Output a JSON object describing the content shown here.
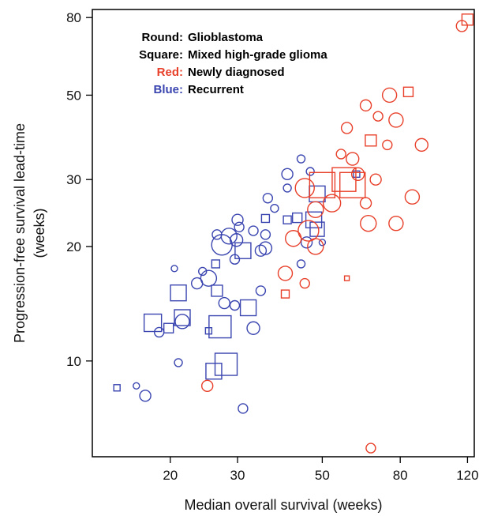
{
  "chart_data": {
    "type": "scatter",
    "x_scale": "log",
    "y_scale": "log",
    "xlabel": "Median overall survival (weeks)",
    "ylabel_line1": "Progression-free survival lead-time",
    "ylabel_line2": "(weeks)",
    "xlim": [
      12.5,
      125
    ],
    "ylim": [
      5.6,
      84
    ],
    "x_ticks": [
      {
        "value": 20,
        "label": "20"
      },
      {
        "value": 30,
        "label": "30"
      },
      {
        "value": 50,
        "label": "50"
      },
      {
        "value": 80,
        "label": "80"
      },
      {
        "value": 120,
        "label": "120"
      }
    ],
    "y_ticks": [
      {
        "value": 10,
        "label": "10"
      },
      {
        "value": 20,
        "label": "20"
      },
      {
        "value": 30,
        "label": "30"
      },
      {
        "value": 50,
        "label": "50"
      },
      {
        "value": 80,
        "label": "80"
      }
    ],
    "grid": false,
    "legend_position": "top-left",
    "legend": [
      {
        "key": "Round:",
        "text": "Glioblastoma",
        "color": "#000000"
      },
      {
        "key": "Square:",
        "text": "Mixed high-grade glioma",
        "color": "#000000"
      },
      {
        "key": "Red:",
        "text": "Newly diagnosed",
        "color": "#e8402a"
      },
      {
        "key": "Blue:",
        "text": "Recurrent",
        "color": "#3a45b0"
      }
    ],
    "colors": {
      "newly_diagnosed": "#e8402a",
      "recurrent": "#3a45b0",
      "axis": "#000000"
    },
    "series": [
      {
        "name": "Newly diagnosed",
        "color": "#e8402a",
        "points": [
          {
            "x": 116,
            "y": 76,
            "shape": "circle",
            "size": 7
          },
          {
            "x": 120,
            "y": 79,
            "shape": "square",
            "size": 7
          },
          {
            "x": 84,
            "y": 51,
            "shape": "square",
            "size": 6
          },
          {
            "x": 75,
            "y": 50,
            "shape": "circle",
            "size": 9
          },
          {
            "x": 65,
            "y": 47,
            "shape": "circle",
            "size": 7
          },
          {
            "x": 70,
            "y": 44,
            "shape": "circle",
            "size": 6
          },
          {
            "x": 78,
            "y": 43,
            "shape": "circle",
            "size": 9
          },
          {
            "x": 58,
            "y": 41,
            "shape": "circle",
            "size": 7
          },
          {
            "x": 67,
            "y": 38,
            "shape": "square",
            "size": 7
          },
          {
            "x": 74,
            "y": 37,
            "shape": "circle",
            "size": 6
          },
          {
            "x": 91,
            "y": 37,
            "shape": "circle",
            "size": 8
          },
          {
            "x": 56,
            "y": 35,
            "shape": "circle",
            "size": 6
          },
          {
            "x": 60,
            "y": 34,
            "shape": "circle",
            "size": 8
          },
          {
            "x": 62,
            "y": 31,
            "shape": "circle",
            "size": 8
          },
          {
            "x": 69,
            "y": 30,
            "shape": "circle",
            "size": 7
          },
          {
            "x": 57,
            "y": 30,
            "shape": "square",
            "size": 15
          },
          {
            "x": 60,
            "y": 29,
            "shape": "square",
            "size": 16
          },
          {
            "x": 50,
            "y": 29,
            "shape": "square",
            "size": 16
          },
          {
            "x": 45,
            "y": 28.5,
            "shape": "circle",
            "size": 12
          },
          {
            "x": 65,
            "y": 26,
            "shape": "circle",
            "size": 7
          },
          {
            "x": 86,
            "y": 27,
            "shape": "circle",
            "size": 9
          },
          {
            "x": 53,
            "y": 26,
            "shape": "circle",
            "size": 11
          },
          {
            "x": 48,
            "y": 25,
            "shape": "circle",
            "size": 10
          },
          {
            "x": 66,
            "y": 23,
            "shape": "circle",
            "size": 10
          },
          {
            "x": 78,
            "y": 23,
            "shape": "circle",
            "size": 9
          },
          {
            "x": 46,
            "y": 22,
            "shape": "circle",
            "size": 13
          },
          {
            "x": 42,
            "y": 21,
            "shape": "circle",
            "size": 10
          },
          {
            "x": 48,
            "y": 20,
            "shape": "circle",
            "size": 10
          },
          {
            "x": 40,
            "y": 17,
            "shape": "circle",
            "size": 9
          },
          {
            "x": 45,
            "y": 16,
            "shape": "circle",
            "size": 6
          },
          {
            "x": 58,
            "y": 16.5,
            "shape": "square",
            "size": 3
          },
          {
            "x": 40,
            "y": 15,
            "shape": "square",
            "size": 5
          },
          {
            "x": 25,
            "y": 8.6,
            "shape": "circle",
            "size": 7
          },
          {
            "x": 67,
            "y": 5.9,
            "shape": "circle",
            "size": 6
          }
        ]
      },
      {
        "name": "Recurrent",
        "color": "#3a45b0",
        "points": [
          {
            "x": 14.5,
            "y": 8.5,
            "shape": "square",
            "size": 4
          },
          {
            "x": 16.3,
            "y": 8.6,
            "shape": "circle",
            "size": 4
          },
          {
            "x": 17.2,
            "y": 8.1,
            "shape": "circle",
            "size": 7
          },
          {
            "x": 21,
            "y": 9.9,
            "shape": "circle",
            "size": 5
          },
          {
            "x": 26,
            "y": 9.4,
            "shape": "square",
            "size": 10
          },
          {
            "x": 28,
            "y": 9.8,
            "shape": "square",
            "size": 14
          },
          {
            "x": 31,
            "y": 7.5,
            "shape": "circle",
            "size": 6
          },
          {
            "x": 18,
            "y": 12.6,
            "shape": "square",
            "size": 11
          },
          {
            "x": 18.7,
            "y": 11.9,
            "shape": "circle",
            "size": 6
          },
          {
            "x": 19.8,
            "y": 12.2,
            "shape": "square",
            "size": 6
          },
          {
            "x": 21.5,
            "y": 12.7,
            "shape": "circle",
            "size": 9
          },
          {
            "x": 21.5,
            "y": 13,
            "shape": "square",
            "size": 10
          },
          {
            "x": 25.2,
            "y": 12,
            "shape": "square",
            "size": 4
          },
          {
            "x": 27,
            "y": 12.3,
            "shape": "square",
            "size": 14
          },
          {
            "x": 33,
            "y": 12.2,
            "shape": "circle",
            "size": 8
          },
          {
            "x": 21,
            "y": 15.1,
            "shape": "square",
            "size": 10
          },
          {
            "x": 23.5,
            "y": 16,
            "shape": "circle",
            "size": 7
          },
          {
            "x": 25.2,
            "y": 16.5,
            "shape": "circle",
            "size": 10
          },
          {
            "x": 27.7,
            "y": 14.2,
            "shape": "circle",
            "size": 7
          },
          {
            "x": 29.5,
            "y": 14,
            "shape": "circle",
            "size": 6
          },
          {
            "x": 26.5,
            "y": 15.3,
            "shape": "square",
            "size": 7
          },
          {
            "x": 32,
            "y": 13.8,
            "shape": "square",
            "size": 10
          },
          {
            "x": 34.5,
            "y": 15.3,
            "shape": "circle",
            "size": 6
          },
          {
            "x": 20.5,
            "y": 17.5,
            "shape": "circle",
            "size": 4
          },
          {
            "x": 24.3,
            "y": 17.2,
            "shape": "circle",
            "size": 5
          },
          {
            "x": 26.3,
            "y": 18,
            "shape": "square",
            "size": 5
          },
          {
            "x": 29.5,
            "y": 18.5,
            "shape": "circle",
            "size": 6
          },
          {
            "x": 31,
            "y": 19.5,
            "shape": "square",
            "size": 10
          },
          {
            "x": 27.3,
            "y": 20.2,
            "shape": "circle",
            "size": 13
          },
          {
            "x": 28.5,
            "y": 21.3,
            "shape": "circle",
            "size": 10
          },
          {
            "x": 26.5,
            "y": 21.5,
            "shape": "circle",
            "size": 6
          },
          {
            "x": 29.8,
            "y": 20.8,
            "shape": "circle",
            "size": 8
          },
          {
            "x": 34.5,
            "y": 19.5,
            "shape": "circle",
            "size": 7
          },
          {
            "x": 35.5,
            "y": 19.8,
            "shape": "circle",
            "size": 8
          },
          {
            "x": 30,
            "y": 23.5,
            "shape": "circle",
            "size": 7
          },
          {
            "x": 30.3,
            "y": 22.5,
            "shape": "circle",
            "size": 6
          },
          {
            "x": 33,
            "y": 22,
            "shape": "circle",
            "size": 6
          },
          {
            "x": 35.5,
            "y": 21.5,
            "shape": "circle",
            "size": 6
          },
          {
            "x": 35.5,
            "y": 23.7,
            "shape": "square",
            "size": 5
          },
          {
            "x": 40.5,
            "y": 23.5,
            "shape": "square",
            "size": 5
          },
          {
            "x": 43,
            "y": 23.8,
            "shape": "square",
            "size": 6
          },
          {
            "x": 36,
            "y": 26.8,
            "shape": "circle",
            "size": 6
          },
          {
            "x": 37.5,
            "y": 25.2,
            "shape": "circle",
            "size": 5
          },
          {
            "x": 40.5,
            "y": 28.5,
            "shape": "circle",
            "size": 5
          },
          {
            "x": 40.5,
            "y": 31,
            "shape": "circle",
            "size": 7
          },
          {
            "x": 44,
            "y": 34,
            "shape": "circle",
            "size": 5
          },
          {
            "x": 46.5,
            "y": 31.5,
            "shape": "circle",
            "size": 5
          },
          {
            "x": 48.5,
            "y": 27.5,
            "shape": "square",
            "size": 10
          },
          {
            "x": 47.5,
            "y": 23.5,
            "shape": "square",
            "size": 10
          },
          {
            "x": 48.5,
            "y": 22.2,
            "shape": "square",
            "size": 9
          },
          {
            "x": 45.5,
            "y": 20.5,
            "shape": "circle",
            "size": 7
          },
          {
            "x": 50,
            "y": 20.5,
            "shape": "circle",
            "size": 4
          },
          {
            "x": 61.5,
            "y": 31,
            "shape": "square",
            "size": 4
          },
          {
            "x": 44,
            "y": 18,
            "shape": "circle",
            "size": 5
          }
        ]
      }
    ]
  }
}
